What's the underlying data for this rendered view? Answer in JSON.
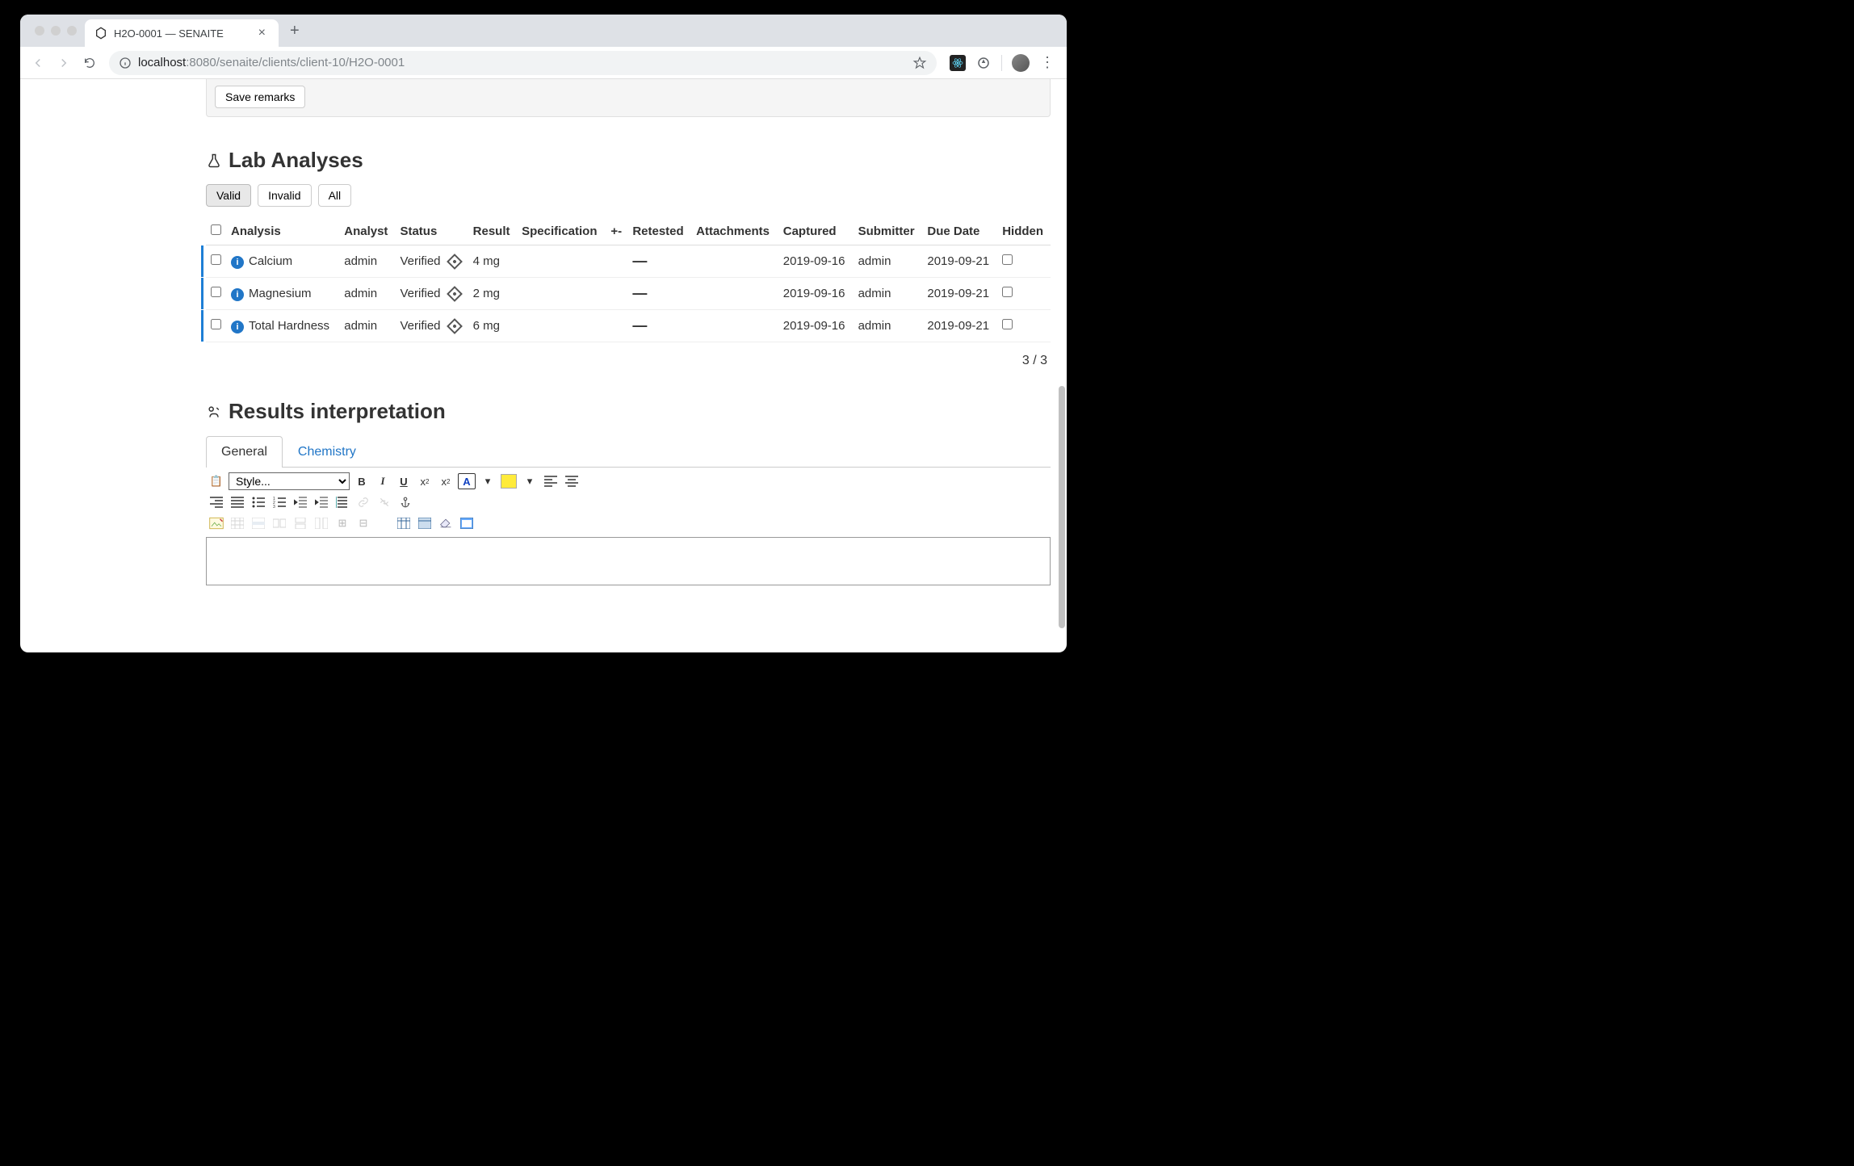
{
  "browser": {
    "tab_title": "H2O-0001 — SENAITE",
    "url_host": "localhost",
    "url_port_path": ":8080/senaite/clients/client-10/H2O-0001"
  },
  "remarks": {
    "save_label": "Save remarks"
  },
  "lab_analyses": {
    "title": "Lab Analyses",
    "filters": {
      "valid": "Valid",
      "invalid": "Invalid",
      "all": "All"
    },
    "columns": {
      "analysis": "Analysis",
      "analyst": "Analyst",
      "status": "Status",
      "result": "Result",
      "specification": "Specification",
      "pm": "+-",
      "retested": "Retested",
      "attachments": "Attachments",
      "captured": "Captured",
      "submitter": "Submitter",
      "due_date": "Due Date",
      "hidden": "Hidden"
    },
    "rows": [
      {
        "analysis": "Calcium",
        "analyst": "admin",
        "status": "Verified",
        "result": "4 mg",
        "retested": "–",
        "captured": "2019-09-16",
        "submitter": "admin",
        "due_date": "2019-09-21"
      },
      {
        "analysis": "Magnesium",
        "analyst": "admin",
        "status": "Verified",
        "result": "2 mg",
        "retested": "–",
        "captured": "2019-09-16",
        "submitter": "admin",
        "due_date": "2019-09-21"
      },
      {
        "analysis": "Total Hardness",
        "analyst": "admin",
        "status": "Verified",
        "result": "6 mg",
        "retested": "–",
        "captured": "2019-09-16",
        "submitter": "admin",
        "due_date": "2019-09-21"
      }
    ],
    "pager": "3 / 3"
  },
  "results_interpretation": {
    "title": "Results interpretation",
    "tabs": {
      "general": "General",
      "chemistry": "Chemistry"
    },
    "style_placeholder": "Style..."
  },
  "colors": {
    "accent": "#2176c7",
    "tab_strip": "#dee1e6",
    "border": "#e0e0e0"
  }
}
